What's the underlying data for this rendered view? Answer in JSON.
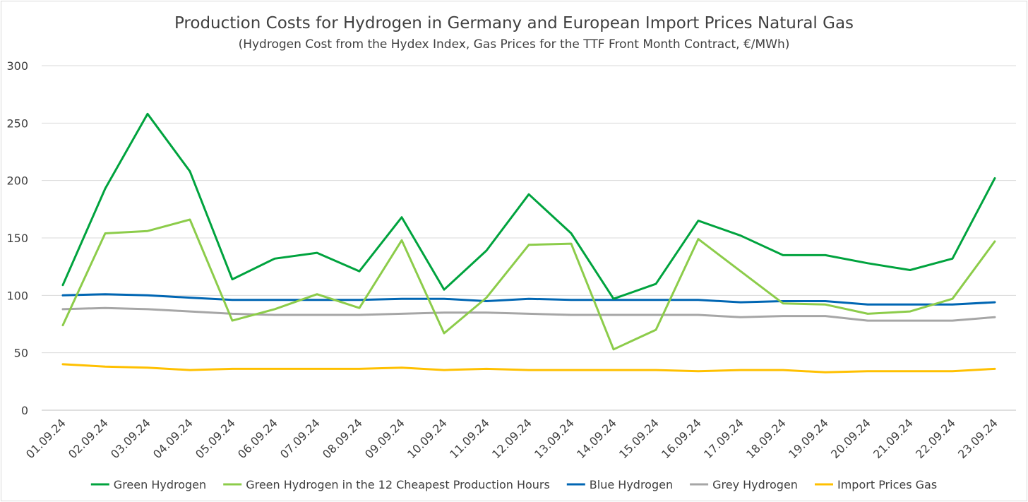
{
  "chart_data": {
    "type": "line",
    "title": "Production Costs for Hydrogen in Germany and European Import Prices Natural Gas",
    "subtitle": "(Hydrogen Cost from the Hydex Index, Gas Prices for the TTF Front Month Contract, €/MWh)",
    "xlabel": "",
    "ylabel": "",
    "ylim": [
      0,
      300
    ],
    "yticks": [
      "0",
      "50",
      "100",
      "150",
      "200",
      "250",
      "300"
    ],
    "grid": true,
    "legend_position": "bottom",
    "categories": [
      "01.09.24",
      "02.09.24",
      "03.09.24",
      "04.09.24",
      "05.09.24",
      "06.09.24",
      "07.09.24",
      "08.09.24",
      "09.09.24",
      "10.09.24",
      "11.09.24",
      "12.09.24",
      "13.09.24",
      "14.09.24",
      "15.09.24",
      "16.09.24",
      "17.09.24",
      "18.09.24",
      "19.09.24",
      "20.09.24",
      "21.09.24",
      "22.09.24",
      "23.09.24"
    ],
    "series": [
      {
        "name": "Green Hydrogen",
        "color": "#00a33e",
        "values": [
          109,
          193,
          258,
          208,
          114,
          132,
          137,
          121,
          168,
          105,
          139,
          188,
          154,
          97,
          110,
          165,
          152,
          135,
          135,
          128,
          122,
          132,
          202
        ]
      },
      {
        "name": "Green Hydrogen in the 12 Cheapest Production Hours",
        "color": "#8ccc4a",
        "values": [
          74,
          154,
          156,
          166,
          78,
          88,
          101,
          89,
          148,
          67,
          98,
          144,
          145,
          53,
          70,
          149,
          121,
          93,
          92,
          84,
          86,
          97,
          147
        ]
      },
      {
        "name": "Blue Hydrogen",
        "color": "#0066b3",
        "values": [
          100,
          101,
          100,
          98,
          96,
          96,
          96,
          96,
          97,
          97,
          95,
          97,
          96,
          96,
          96,
          96,
          94,
          95,
          95,
          92,
          92,
          92,
          94
        ]
      },
      {
        "name": "Grey Hydrogen",
        "color": "#a6a6a6",
        "values": [
          88,
          89,
          88,
          86,
          84,
          83,
          83,
          83,
          84,
          85,
          85,
          84,
          83,
          83,
          83,
          83,
          81,
          82,
          82,
          78,
          78,
          78,
          81
        ]
      },
      {
        "name": "Import Prices Gas",
        "color": "#ffc000",
        "values": [
          40,
          38,
          37,
          35,
          36,
          36,
          36,
          36,
          37,
          35,
          36,
          35,
          35,
          35,
          35,
          34,
          35,
          35,
          33,
          34,
          34,
          34,
          36
        ]
      }
    ]
  }
}
